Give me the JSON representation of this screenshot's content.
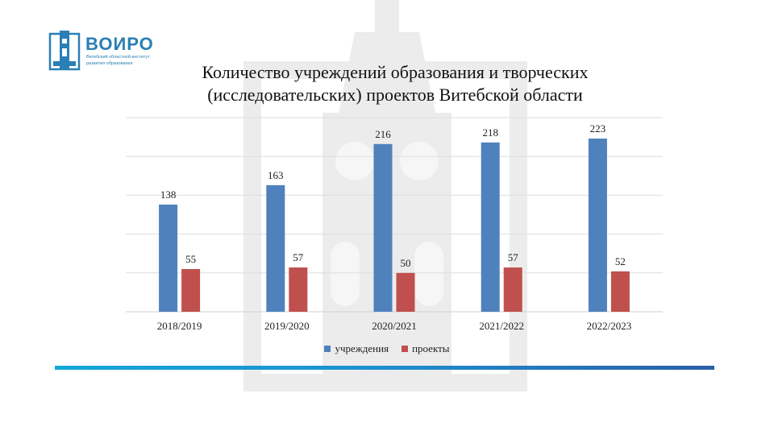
{
  "logo": {
    "name": "ВОИРО",
    "subtitle_line1": "Витебский областной институт",
    "subtitle_line2": "развития образования"
  },
  "title_line1": "Количество учреждений образования и творческих",
  "title_line2": "(исследовательских) проектов Витебской области",
  "colors": {
    "accent_line_start": "#13a8d8",
    "accent_line_end": "#2b5fa8",
    "logo": "#2a7fb5"
  },
  "chart_data": {
    "type": "bar",
    "title": "Количество учреждений образования и творческих (исследовательских) проектов Витебской области",
    "categories": [
      "2018/2019",
      "2019/2020",
      "2020/2021",
      "2021/2022",
      "2022/2023"
    ],
    "series": [
      {
        "name": "учреждения",
        "color": "#4f81bd",
        "values": [
          138,
          163,
          216,
          218,
          223
        ]
      },
      {
        "name": "проекты",
        "color": "#c0504d",
        "values": [
          55,
          57,
          50,
          57,
          52
        ]
      }
    ],
    "ylim": [
      0,
      250
    ],
    "grid": true,
    "legend": "bottom-center"
  }
}
